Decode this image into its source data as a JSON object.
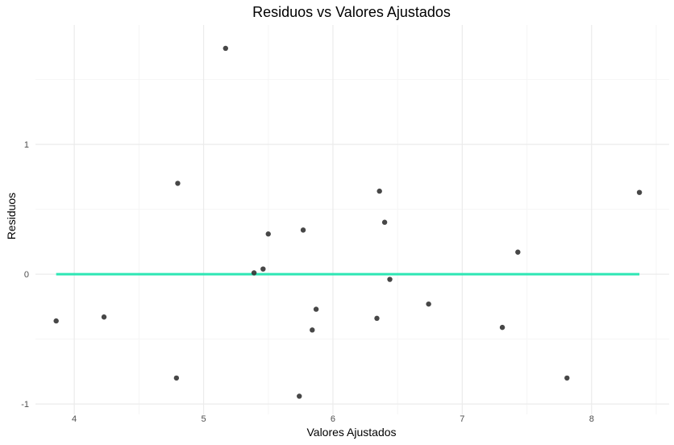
{
  "chart_data": {
    "type": "scatter",
    "title": "Residuos vs Valores Ajustados",
    "xlabel": "Valores Ajustados",
    "ylabel": "Residuos",
    "xlim": [
      3.7,
      8.6
    ],
    "ylim": [
      -1.08,
      1.92
    ],
    "x_ticks": [
      4,
      5,
      6,
      7,
      8
    ],
    "x_tick_labels": [
      "4",
      "5",
      "6",
      "7",
      "8"
    ],
    "y_ticks": [
      -1,
      0,
      1
    ],
    "y_tick_labels": [
      "-1",
      "0",
      "1"
    ],
    "grid": true,
    "legend": "none",
    "points": [
      {
        "x": 3.86,
        "y": -0.36
      },
      {
        "x": 4.23,
        "y": -0.33
      },
      {
        "x": 4.79,
        "y": -0.8
      },
      {
        "x": 4.8,
        "y": 0.7
      },
      {
        "x": 5.17,
        "y": 1.74
      },
      {
        "x": 5.39,
        "y": 0.01
      },
      {
        "x": 5.46,
        "y": 0.04
      },
      {
        "x": 5.5,
        "y": 0.31
      },
      {
        "x": 5.74,
        "y": -0.94
      },
      {
        "x": 5.77,
        "y": 0.34
      },
      {
        "x": 5.84,
        "y": -0.43
      },
      {
        "x": 5.87,
        "y": -0.27
      },
      {
        "x": 6.34,
        "y": -0.34
      },
      {
        "x": 6.36,
        "y": 0.64
      },
      {
        "x": 6.4,
        "y": 0.4
      },
      {
        "x": 6.44,
        "y": -0.04
      },
      {
        "x": 6.74,
        "y": -0.23
      },
      {
        "x": 7.31,
        "y": -0.41
      },
      {
        "x": 7.43,
        "y": 0.17
      },
      {
        "x": 7.81,
        "y": -0.8
      },
      {
        "x": 8.37,
        "y": 0.63
      }
    ],
    "reference_line": {
      "x_start": 3.86,
      "x_end": 8.37,
      "y": 0
    },
    "colors": {
      "points": "#333333",
      "reference_line": "#2de6b4",
      "major_grid": "#ebebeb",
      "minor_grid": "#f5f5f5",
      "background": "#ffffff"
    }
  }
}
